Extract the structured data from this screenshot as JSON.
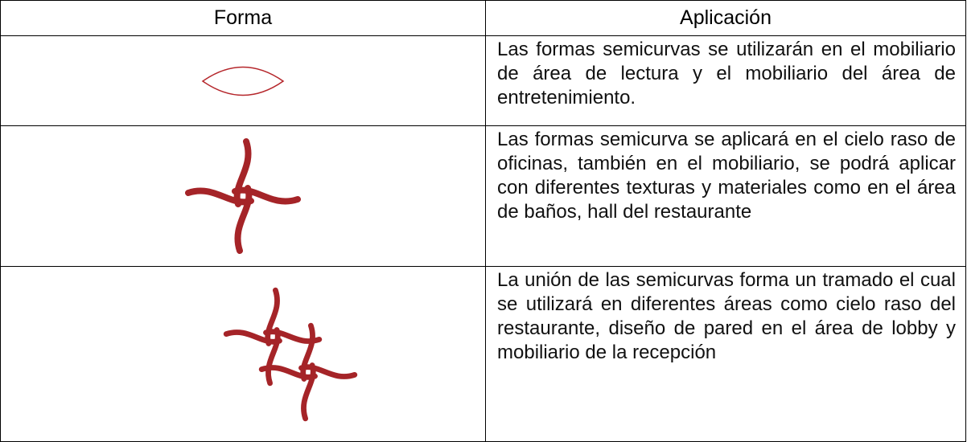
{
  "table": {
    "header": [
      "Forma",
      "Aplicación"
    ],
    "rows": [
      [
        "Las formas semicurvas se utilizarán en el mobiliario de área de lectura y el mobiliario del área de entretenimiento."
      ],
      [
        "Las formas semicurva se aplicará en el cielo raso de oficinas, también en el mobiliario, se podrá aplicar con diferentes texturas y materiales como en el área de baños, hall del restaurante"
      ],
      [
        "La unión de las semicurvas forma un tramado el cual se utilizará en diferentes áreas como cielo raso del restaurante, diseño de pared en el área de lobby y mobiliario de la recepción"
      ]
    ]
  }
}
